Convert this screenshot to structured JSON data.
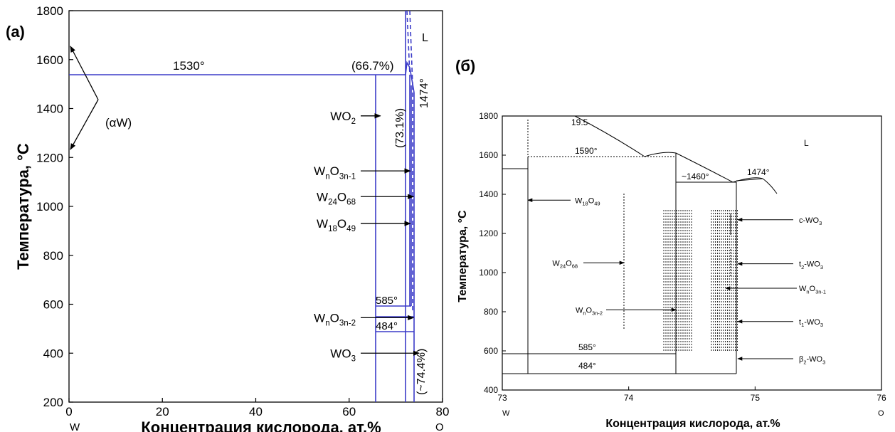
{
  "chart_data": [
    {
      "type": "phase-diagram",
      "panel_label": "(a)",
      "ylabel": "Температура, °C",
      "xlabel": "Концентрация кислорода, ат.%",
      "xlim": [
        0,
        80
      ],
      "ylim": [
        200,
        1800
      ],
      "x_ticks": [
        "0",
        "20",
        "40",
        "60",
        "80"
      ],
      "y_ticks": [
        "200",
        "400",
        "600",
        "800",
        "1000",
        "1200",
        "1400",
        "1600",
        "1800"
      ],
      "x_end_labels": {
        "left": "W",
        "right": "O"
      },
      "line_color": "#3b3bc8",
      "labels": {
        "eutectic": "1530°",
        "comp1": "(66.7%)",
        "liquid": "L",
        "alphaW": "(αW)",
        "melt": "1474°",
        "comp2": "(73.1%)",
        "t585": "585°",
        "t484": "484°",
        "comp3": "(~74.4%)"
      },
      "phases": [
        {
          "main": "WO",
          "sub": "2",
          "post": "",
          "y": 1370,
          "x_end": 66.7
        },
        {
          "main": "W",
          "sub": "n",
          "post": "O",
          "sub2": "3n-1",
          "y": 1145,
          "x_end": 73.1
        },
        {
          "main": "W",
          "sub": "24",
          "post": "O",
          "sub2": "68",
          "y": 1040,
          "x_end": 73.8
        },
        {
          "main": "W",
          "sub": "18",
          "post": "O",
          "sub2": "49",
          "y": 930,
          "x_end": 73.1
        },
        {
          "main": "W",
          "sub": "n",
          "post": "O",
          "sub2": "3n-2",
          "y": 545,
          "x_end": 73.8
        },
        {
          "main": "WO",
          "sub": "3",
          "post": "",
          "y": 400,
          "x_end": 75
        }
      ]
    },
    {
      "type": "phase-diagram",
      "panel_label": "(б)",
      "ylabel": "Температура, °C",
      "xlabel": "Концентрация кислорода, ат.%",
      "xlim": [
        73,
        76
      ],
      "ylim": [
        400,
        1800
      ],
      "x_ticks": [
        "73",
        "74",
        "75",
        "76"
      ],
      "y_ticks": [
        "400",
        "600",
        "800",
        "1000",
        "1200",
        "1400",
        "1600",
        "1800"
      ],
      "x_end_labels": {
        "left": "W",
        "right": "O"
      },
      "labels": {
        "top": "19.5",
        "t1590": "1590°",
        "t1460": "~1460°",
        "t1474": "1474°",
        "liquid": "L",
        "t585": "585°",
        "t484": "484°"
      },
      "phases_left": [
        {
          "main": "W",
          "sub": "18",
          "post": "O",
          "sub2": "49",
          "y": 1370
        },
        {
          "main": "W",
          "sub": "24",
          "post": "O",
          "sub2": "68",
          "y": 1050
        },
        {
          "main": "W",
          "sub": "n",
          "post": "O",
          "sub2": "3n-2",
          "y": 810
        }
      ],
      "phases_right": [
        {
          "main": "c-WO",
          "sub": "3",
          "y": 1270
        },
        {
          "main": "t",
          "sub": "2",
          "post": "-WO",
          "sub2": "3",
          "y": 1045
        },
        {
          "main": "W",
          "sub": "n",
          "post": "O",
          "sub2": "3n-1",
          "y": 920
        },
        {
          "main": "t",
          "sub": "1",
          "post": "-WO",
          "sub2": "3",
          "y": 750
        },
        {
          "main": "β",
          "sub": "2",
          "post": "-WO",
          "sub2": "3",
          "y": 560
        }
      ]
    }
  ]
}
